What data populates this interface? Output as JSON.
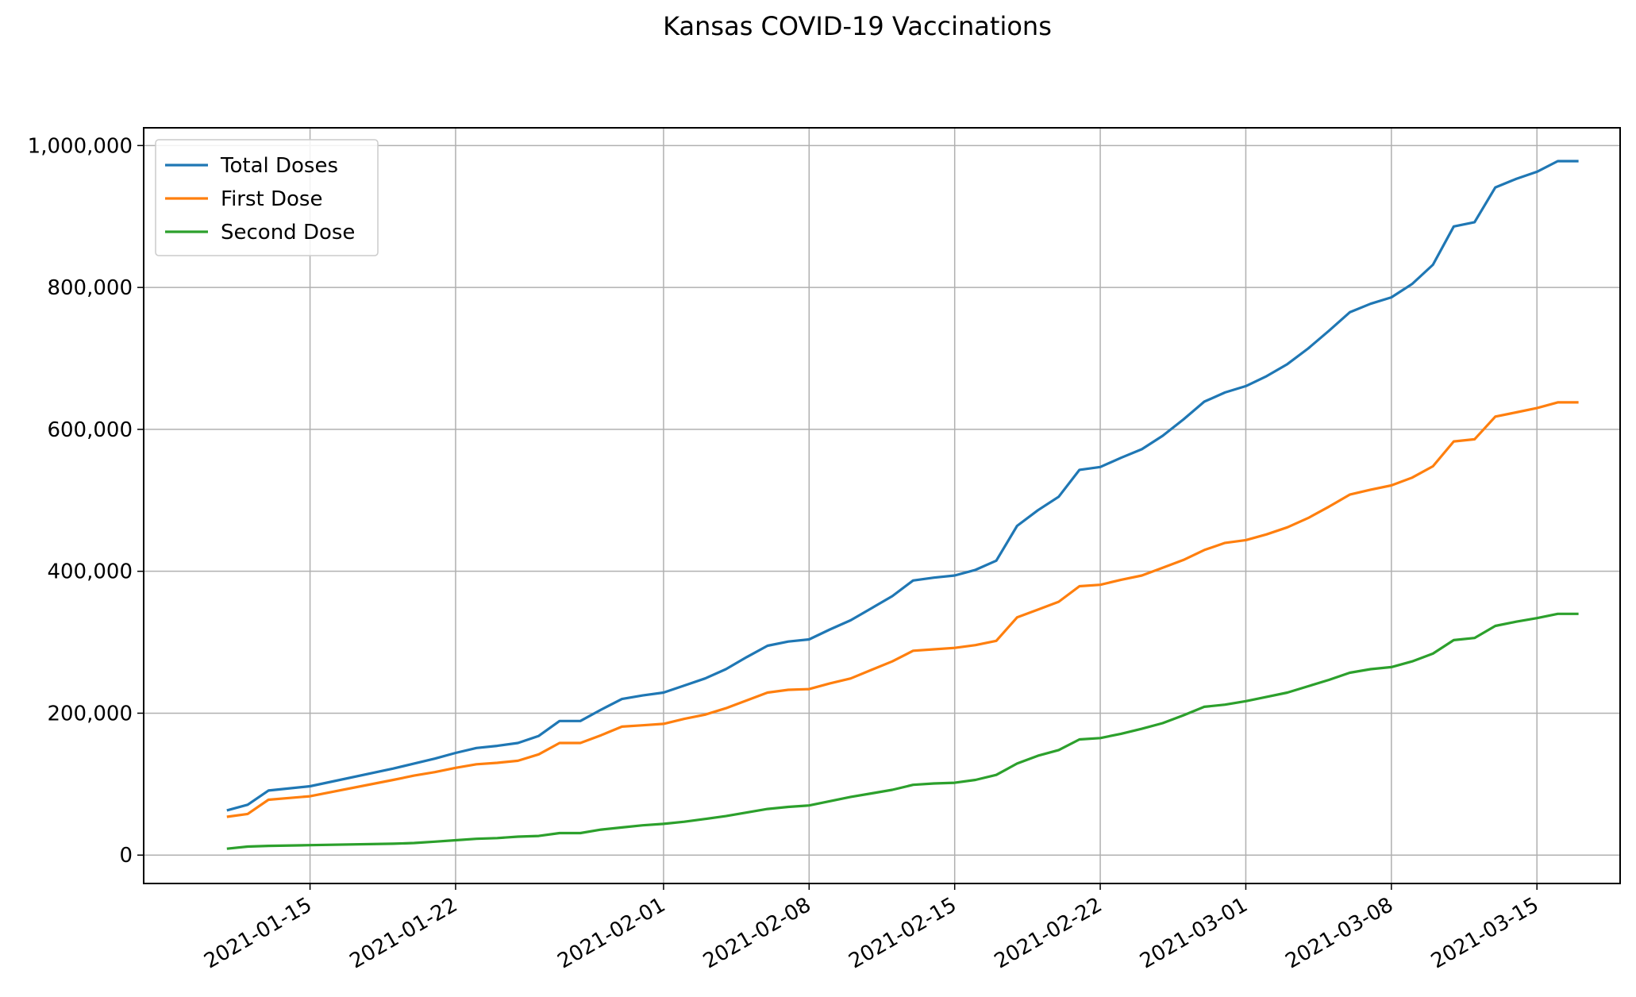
{
  "chart_data": {
    "type": "line",
    "title": "Kansas COVID-19 Vaccinations",
    "xlabel": "",
    "ylabel": "",
    "x": [
      "2021-01-11",
      "2021-01-12",
      "2021-01-13",
      "2021-01-15",
      "2021-01-19",
      "2021-01-20",
      "2021-01-21",
      "2021-01-22",
      "2021-01-23",
      "2021-01-24",
      "2021-01-25",
      "2021-01-26",
      "2021-01-27",
      "2021-01-28",
      "2021-01-29",
      "2021-01-30",
      "2021-01-31",
      "2021-02-01",
      "2021-02-02",
      "2021-02-03",
      "2021-02-04",
      "2021-02-05",
      "2021-02-06",
      "2021-02-07",
      "2021-02-08",
      "2021-02-09",
      "2021-02-10",
      "2021-02-11",
      "2021-02-12",
      "2021-02-13",
      "2021-02-14",
      "2021-02-15",
      "2021-02-16",
      "2021-02-17",
      "2021-02-18",
      "2021-02-19",
      "2021-02-20",
      "2021-02-21",
      "2021-02-22",
      "2021-02-23",
      "2021-02-24",
      "2021-02-25",
      "2021-02-26",
      "2021-02-27",
      "2021-02-28",
      "2021-03-01",
      "2021-03-02",
      "2021-03-03",
      "2021-03-04",
      "2021-03-05",
      "2021-03-06",
      "2021-03-07",
      "2021-03-08",
      "2021-03-09",
      "2021-03-10",
      "2021-03-11",
      "2021-03-12",
      "2021-03-13",
      "2021-03-14",
      "2021-03-15",
      "2021-03-16",
      "2021-03-17"
    ],
    "series": [
      {
        "name": "Total Doses",
        "color": "#1f77b4",
        "values": [
          63000,
          71000,
          91000,
          97000,
          122000,
          129000,
          136000,
          144000,
          151000,
          154000,
          158000,
          168000,
          189000,
          189000,
          205000,
          220000,
          225000,
          229000,
          239000,
          249000,
          262000,
          279000,
          295000,
          301000,
          304000,
          318000,
          331000,
          348000,
          365000,
          387000,
          391000,
          394000,
          402000,
          415000,
          464000,
          486000,
          505000,
          543000,
          547000,
          560000,
          572000,
          591000,
          614000,
          639000,
          652000,
          661000,
          675000,
          692000,
          714000,
          739000,
          765000,
          777000,
          786000,
          805000,
          832000,
          886000,
          892000,
          941000,
          953000,
          963000,
          978000,
          978000
        ]
      },
      {
        "name": "First Dose",
        "color": "#ff7f0e",
        "values": [
          54000,
          58000,
          78000,
          83000,
          106000,
          112000,
          117000,
          123000,
          128000,
          130000,
          133000,
          142000,
          158000,
          158000,
          169000,
          181000,
          183000,
          185000,
          192000,
          198000,
          207000,
          218000,
          229000,
          233000,
          234000,
          242000,
          249000,
          261000,
          273000,
          288000,
          290000,
          292000,
          296000,
          302000,
          335000,
          346000,
          357000,
          379000,
          381000,
          388000,
          394000,
          405000,
          416000,
          430000,
          440000,
          444000,
          452000,
          462000,
          475000,
          491000,
          508000,
          515000,
          521000,
          532000,
          548000,
          583000,
          586000,
          618000,
          624000,
          630000,
          638000,
          638000
        ]
      },
      {
        "name": "Second Dose",
        "color": "#2ca02c",
        "values": [
          9000,
          12000,
          13000,
          14000,
          16000,
          17000,
          19000,
          21000,
          23000,
          24000,
          26000,
          27000,
          31000,
          31000,
          36000,
          39000,
          42000,
          44000,
          47000,
          51000,
          55000,
          60000,
          65000,
          68000,
          70000,
          76000,
          82000,
          87000,
          92000,
          99000,
          101000,
          102000,
          106000,
          113000,
          129000,
          140000,
          148000,
          163000,
          165000,
          171000,
          178000,
          186000,
          197000,
          209000,
          212000,
          217000,
          223000,
          229000,
          238000,
          247000,
          257000,
          262000,
          265000,
          273000,
          284000,
          303000,
          306000,
          323000,
          329000,
          334000,
          340000,
          340000
        ]
      }
    ],
    "xticks": [
      "2021-01-15",
      "2021-01-22",
      "2021-02-01",
      "2021-02-08",
      "2021-02-15",
      "2021-02-22",
      "2021-03-01",
      "2021-03-08",
      "2021-03-15"
    ],
    "yticks": [
      0,
      200000,
      400000,
      600000,
      800000,
      1000000
    ],
    "ytick_labels": [
      "0",
      "200,000",
      "400,000",
      "600,000",
      "800,000",
      "1,000,000"
    ],
    "xlim": [
      "2021-01-07",
      "2021-03-19"
    ],
    "ylim": [
      -40000,
      1025000
    ],
    "grid": true,
    "legend_position": "upper-left",
    "grid_color": "#b0b0b0"
  }
}
